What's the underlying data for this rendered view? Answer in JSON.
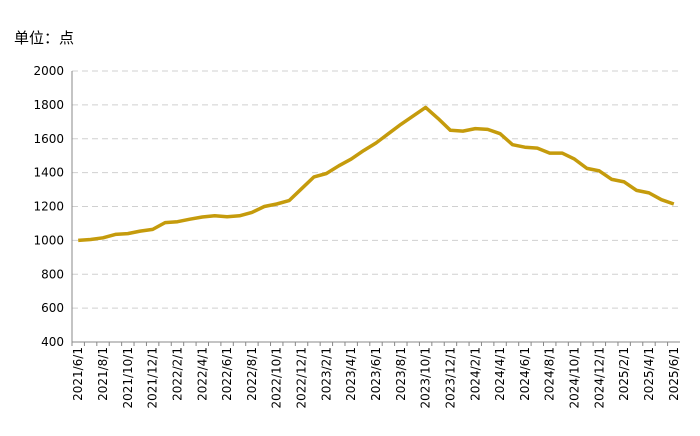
{
  "chart_data": {
    "type": "line",
    "y_label": "单位：点",
    "categories": [
      "2021/6/1",
      null,
      "2021/8/1",
      null,
      "2021/10/1",
      null,
      "2021/12/1",
      null,
      "2022/2/1",
      null,
      "2022/4/1",
      null,
      "2022/6/1",
      null,
      "2022/8/1",
      null,
      "2022/10/1",
      null,
      "2022/12/1",
      null,
      "2023/2/1",
      null,
      "2023/4/1",
      null,
      "2023/6/1",
      null,
      "2023/8/1",
      null,
      "2023/10/1",
      null,
      "2023/12/1",
      null,
      "2024/2/1",
      null,
      "2024/4/1",
      null,
      "2024/6/1",
      null,
      "2024/8/1",
      null,
      "2024/10/1",
      null,
      "2024/12/1",
      null,
      "2025/2/1",
      null,
      "2025/4/1",
      null,
      "2025/6/1"
    ],
    "values": [
      1000,
      1005,
      1015,
      1035,
      1040,
      1055,
      1065,
      1105,
      1110,
      1125,
      1138,
      1145,
      1140,
      1145,
      1165,
      1200,
      1215,
      1235,
      1305,
      1375,
      1395,
      1440,
      1480,
      1530,
      1575,
      1630,
      1685,
      1735,
      1785,
      1720,
      1650,
      1645,
      1660,
      1655,
      1630,
      1565,
      1550,
      1545,
      1515,
      1515,
      1480,
      1425,
      1410,
      1360,
      1345,
      1295,
      1280,
      1240,
      1215
    ],
    "color": "#c59b0c",
    "ylim": [
      400,
      2000
    ],
    "yticks": [
      400,
      600,
      800,
      1000,
      1200,
      1400,
      1600,
      1800,
      2000
    ],
    "grid": true
  }
}
